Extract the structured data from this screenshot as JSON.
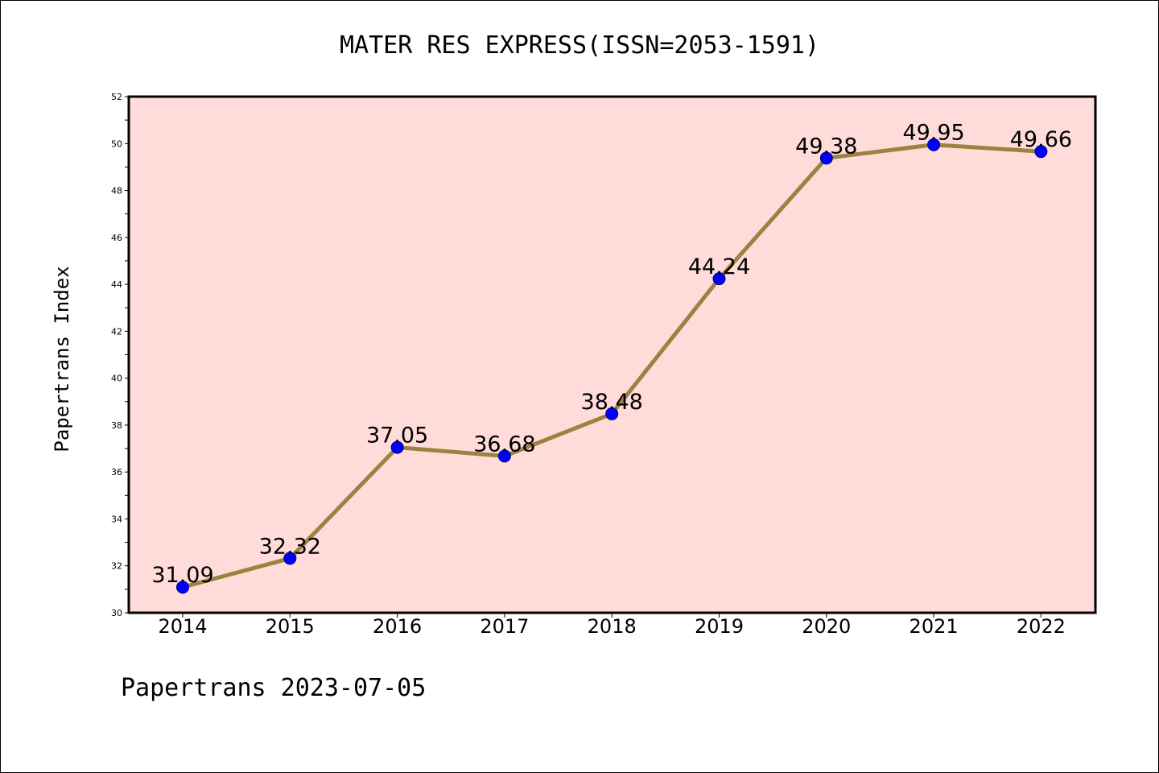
{
  "chart_data": {
    "type": "line",
    "title": "MATER RES EXPRESS(ISSN=2053-1591)",
    "xlabel": "",
    "ylabel": "Papertrans Index",
    "categories": [
      "2014",
      "2015",
      "2016",
      "2017",
      "2018",
      "2019",
      "2020",
      "2021",
      "2022"
    ],
    "values": [
      31.09,
      32.32,
      37.05,
      36.68,
      38.48,
      44.24,
      49.38,
      49.95,
      49.66
    ],
    "data_labels": [
      "31.09",
      "32.32",
      "37.05",
      "36.68",
      "38.48",
      "44.24",
      "49.38",
      "49.95",
      "49.66"
    ],
    "ylim": [
      30,
      52
    ],
    "yticks": [
      "30",
      "32",
      "34",
      "36",
      "38",
      "40",
      "42",
      "44",
      "46",
      "48",
      "50",
      "52"
    ],
    "grid": false,
    "legend": "none",
    "colors": {
      "plot_background": "#ffdcd9",
      "line": "#9a8240",
      "marker": "#0000ff",
      "axis": "#000000"
    }
  },
  "footer": {
    "caption": "Papertrans 2023-07-05"
  }
}
